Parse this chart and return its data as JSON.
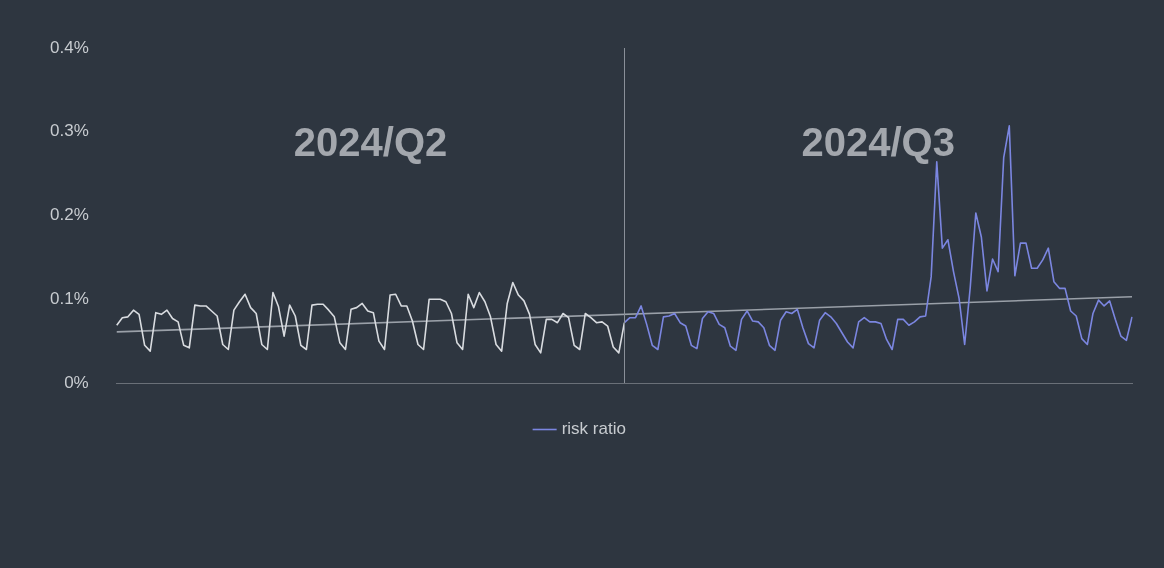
{
  "chart_data": {
    "type": "line",
    "annotations": [
      "2024/Q2",
      "2024/Q3"
    ],
    "categories": [
      null,
      null,
      null,
      null,
      null,
      null,
      null,
      null,
      null,
      null,
      null,
      null,
      null,
      null,
      null,
      null,
      null,
      null,
      null,
      null,
      null,
      null,
      null,
      null,
      null,
      null,
      null,
      null,
      null,
      null,
      null,
      null,
      null,
      null,
      null,
      null,
      null,
      null,
      null,
      null,
      null,
      null,
      null,
      null,
      null,
      null,
      null,
      null,
      null,
      null,
      null,
      null,
      null,
      null,
      null,
      null,
      null,
      null,
      null,
      null,
      null,
      null,
      null,
      null,
      null,
      null,
      null,
      null,
      null,
      null,
      null,
      null,
      null,
      null,
      null,
      null,
      null,
      null,
      null,
      null,
      null,
      null,
      null,
      null,
      null,
      null,
      null,
      null,
      null,
      null,
      null,
      null,
      null,
      null,
      null,
      null,
      null,
      null,
      null,
      null,
      null,
      null,
      null,
      null,
      null,
      null,
      null,
      null,
      null,
      null,
      null,
      null,
      null,
      null,
      null,
      null,
      null,
      null,
      null,
      null,
      null,
      null,
      null,
      null,
      null,
      null,
      null,
      null,
      null,
      null,
      null,
      null,
      null,
      null,
      null,
      null,
      null,
      null,
      null,
      null,
      null,
      null,
      null,
      null,
      null,
      null,
      null,
      null,
      null,
      null,
      null,
      null,
      null,
      null,
      null,
      null,
      null,
      null,
      null,
      null,
      null,
      null,
      null,
      null,
      null,
      null,
      null,
      null,
      null,
      null,
      null,
      null,
      null,
      null,
      null,
      null,
      null,
      null,
      null,
      null,
      null,
      null,
      null
    ],
    "ylim": [
      0,
      0.4
    ],
    "yticks": [
      {
        "value": 0,
        "label": "0%"
      },
      {
        "value": 0.1,
        "label": "0.1%"
      },
      {
        "value": 0.2,
        "label": "0.2%"
      },
      {
        "value": 0.3,
        "label": "0.3%"
      },
      {
        "value": 0.4,
        "label": "0.4%"
      }
    ],
    "tick_labels": "y",
    "grid": false,
    "legend": "bottom",
    "marker": "none",
    "line_style": "solid",
    "series": [
      {
        "color": "#d9dce0",
        "values": [
          0.069,
          0.078,
          0.079,
          0.087,
          0.082,
          0.045,
          0.038,
          0.084,
          0.082,
          0.087,
          0.077,
          0.073,
          0.045,
          0.042,
          0.093,
          0.092,
          0.092,
          0.086,
          0.08,
          0.046,
          0.04,
          0.087,
          0.097,
          0.106,
          0.09,
          0.083,
          0.046,
          0.04,
          0.108,
          0.091,
          0.056,
          0.093,
          0.08,
          0.045,
          0.04,
          0.093,
          0.094,
          0.094,
          0.087,
          0.079,
          0.048,
          0.04,
          0.088,
          0.09,
          0.095,
          0.086,
          0.084,
          0.05,
          0.04,
          0.105,
          0.106,
          0.092,
          0.092,
          0.074,
          0.046,
          0.04,
          0.1,
          0.1,
          0.1,
          0.097,
          0.083,
          0.048,
          0.04,
          0.106,
          0.09,
          0.108,
          0.097,
          0.079,
          0.046,
          0.038,
          0.095,
          0.12,
          0.105,
          0.098,
          0.082,
          0.046,
          0.036,
          0.076,
          0.076,
          0.072,
          0.083,
          0.078,
          0.045,
          0.04,
          0.083,
          0.078,
          0.072,
          0.073,
          0.068,
          0.043,
          0.036,
          0.072,
          null,
          null,
          null,
          null,
          null,
          null,
          null,
          null,
          null,
          null,
          null,
          null,
          null,
          null,
          null,
          null,
          null,
          null,
          null,
          null,
          null,
          null,
          null,
          null,
          null,
          null,
          null,
          null,
          null,
          null,
          null,
          null,
          null,
          null,
          null,
          null,
          null,
          null,
          null,
          null,
          null,
          null,
          null,
          null,
          null,
          null,
          null,
          null,
          null,
          null,
          null,
          null,
          null,
          null,
          null,
          null,
          null,
          null,
          null,
          null,
          null,
          null,
          null,
          null,
          null,
          null,
          null,
          null,
          null,
          null,
          null,
          null,
          null,
          null,
          null,
          null,
          null,
          null,
          null,
          null,
          null,
          null,
          null,
          null,
          null,
          null,
          null,
          null,
          null,
          null,
          null
        ]
      },
      {
        "name": "risk ratio",
        "color": "#7b86e0",
        "values": [
          null,
          null,
          null,
          null,
          null,
          null,
          null,
          null,
          null,
          null,
          null,
          null,
          null,
          null,
          null,
          null,
          null,
          null,
          null,
          null,
          null,
          null,
          null,
          null,
          null,
          null,
          null,
          null,
          null,
          null,
          null,
          null,
          null,
          null,
          null,
          null,
          null,
          null,
          null,
          null,
          null,
          null,
          null,
          null,
          null,
          null,
          null,
          null,
          null,
          null,
          null,
          null,
          null,
          null,
          null,
          null,
          null,
          null,
          null,
          null,
          null,
          null,
          null,
          null,
          null,
          null,
          null,
          null,
          null,
          null,
          null,
          null,
          null,
          null,
          null,
          null,
          null,
          null,
          null,
          null,
          null,
          null,
          null,
          null,
          null,
          null,
          null,
          null,
          null,
          null,
          null,
          0.072,
          0.078,
          0.078,
          0.092,
          0.07,
          0.045,
          0.04,
          0.079,
          0.08,
          0.083,
          0.072,
          0.068,
          0.045,
          0.041,
          0.077,
          0.085,
          0.083,
          0.07,
          0.066,
          0.044,
          0.039,
          0.076,
          0.086,
          0.074,
          0.073,
          0.066,
          0.045,
          0.039,
          0.075,
          0.085,
          0.083,
          0.088,
          0.066,
          0.047,
          0.042,
          0.075,
          0.084,
          0.079,
          0.071,
          0.06,
          0.049,
          0.042,
          0.073,
          0.078,
          0.073,
          0.073,
          0.071,
          0.052,
          0.04,
          0.076,
          0.076,
          0.069,
          0.073,
          0.079,
          0.08,
          0.127,
          0.264,
          0.161,
          0.171,
          0.133,
          0.101,
          0.046,
          0.114,
          0.203,
          0.174,
          0.11,
          0.148,
          0.133,
          0.269,
          0.307,
          0.128,
          0.167,
          0.167,
          0.137,
          0.137,
          0.147,
          0.161,
          0.121,
          0.113,
          0.113,
          0.086,
          0.08,
          0.053,
          0.046,
          0.083,
          0.099,
          0.092,
          0.098,
          0.076,
          0.056,
          0.051,
          0.079
        ]
      },
      {
        "type": "line",
        "color": "#9aa0a8",
        "values": [
          0.061,
          null,
          null,
          null,
          null,
          null,
          null,
          null,
          null,
          null,
          null,
          null,
          null,
          null,
          null,
          null,
          null,
          null,
          null,
          null,
          null,
          null,
          null,
          null,
          null,
          null,
          null,
          null,
          null,
          null,
          null,
          null,
          null,
          null,
          null,
          null,
          null,
          null,
          null,
          null,
          null,
          null,
          null,
          null,
          null,
          null,
          null,
          null,
          null,
          null,
          null,
          null,
          null,
          null,
          null,
          null,
          null,
          null,
          null,
          null,
          null,
          null,
          null,
          null,
          null,
          null,
          null,
          null,
          null,
          null,
          null,
          null,
          null,
          null,
          null,
          null,
          null,
          null,
          null,
          null,
          null,
          null,
          null,
          null,
          null,
          null,
          null,
          null,
          null,
          null,
          null,
          null,
          null,
          null,
          null,
          null,
          null,
          null,
          null,
          null,
          null,
          null,
          null,
          null,
          null,
          null,
          null,
          null,
          null,
          null,
          null,
          null,
          null,
          null,
          null,
          null,
          null,
          null,
          null,
          null,
          null,
          null,
          null,
          null,
          null,
          null,
          null,
          null,
          null,
          null,
          null,
          null,
          null,
          null,
          null,
          null,
          null,
          null,
          null,
          null,
          null,
          null,
          null,
          null,
          null,
          null,
          null,
          null,
          null,
          null,
          null,
          null,
          null,
          null,
          null,
          null,
          null,
          null,
          null,
          null,
          null,
          null,
          null,
          null,
          null,
          null,
          null,
          null,
          null,
          null,
          null,
          null,
          null,
          null,
          null,
          null,
          null,
          null,
          null,
          null,
          null,
          null,
          0.103
        ]
      }
    ]
  }
}
